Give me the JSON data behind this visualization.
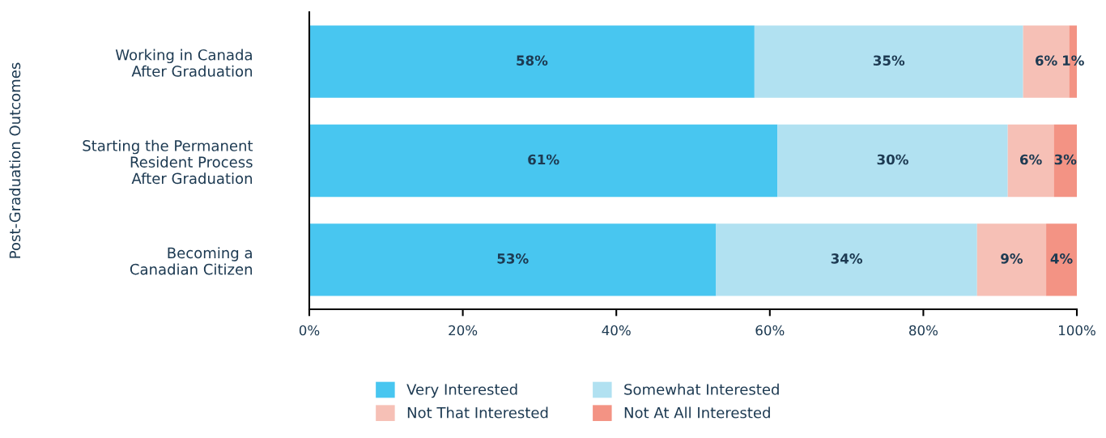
{
  "chart_data": {
    "type": "bar",
    "orientation": "horizontal",
    "stacked": true,
    "ylabel": "Post-Graduation Outcomes",
    "categories": [
      "Working in Canada\nAfter Graduation",
      "Starting the Permanent\nResident Process\nAfter Graduation",
      "Becoming a\nCanadian Citizen"
    ],
    "series": [
      {
        "name": "Very Interested",
        "color": "#48c6f0",
        "values": [
          58,
          61,
          53
        ],
        "value_labels": [
          "58%",
          "61%",
          "53%"
        ]
      },
      {
        "name": "Somewhat Interested",
        "color": "#b1e1f1",
        "values": [
          35,
          30,
          34
        ],
        "value_labels": [
          "35%",
          "30%",
          "34%"
        ]
      },
      {
        "name": "Not That Interested",
        "color": "#f6c0b6",
        "values": [
          6,
          6,
          9
        ],
        "value_labels": [
          "6%",
          "6%",
          "9%"
        ]
      },
      {
        "name": "Not At All Interested",
        "color": "#f39384",
        "values": [
          1,
          3,
          4
        ],
        "value_labels": [
          "1%",
          "3%",
          "4%"
        ]
      }
    ],
    "xlim": [
      0,
      100
    ],
    "xticks": [
      {
        "value": 0,
        "label": "0%"
      },
      {
        "value": 20,
        "label": "20%"
      },
      {
        "value": 40,
        "label": "40%"
      },
      {
        "value": 60,
        "label": "60%"
      },
      {
        "value": 80,
        "label": "80%"
      },
      {
        "value": 100,
        "label": "100%"
      }
    ],
    "grid": false,
    "legend": "bottom"
  }
}
